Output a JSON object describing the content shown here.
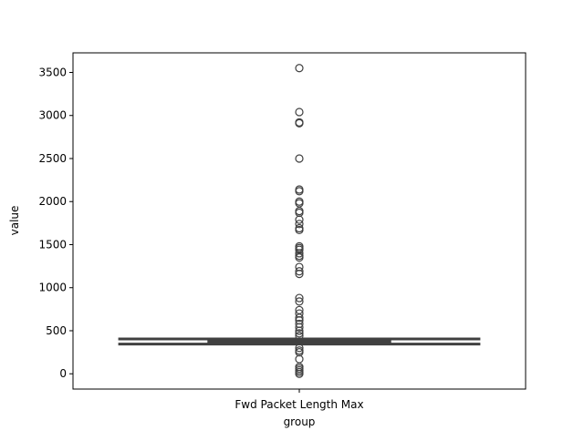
{
  "chart_data": {
    "type": "box",
    "x_label": "group",
    "y_label": "value",
    "categories": [
      "Fwd Packet Length Max"
    ],
    "color": "#404040",
    "q1": [
      349
    ],
    "median": [
      375
    ],
    "q3": [
      402
    ],
    "whisker_low": [
      345
    ],
    "whisker_high": [
      405
    ],
    "outliers": [
      [
        3550,
        3040,
        2920,
        2910,
        2500,
        2140,
        2120,
        2000,
        1980,
        1890,
        1870,
        1790,
        1740,
        1690,
        1670,
        1480,
        1460,
        1440,
        1400,
        1370,
        1350,
        1240,
        1190,
        1160,
        880,
        840,
        740,
        700,
        650,
        620,
        580,
        540,
        500,
        470,
        440,
        300,
        270,
        250,
        170,
        80,
        60,
        40,
        20,
        0
      ]
    ],
    "ylim": [
      -177.5,
      3727.5
    ],
    "yticks": [
      0,
      500,
      1000,
      1500,
      2000,
      2500,
      3000,
      3500
    ]
  }
}
